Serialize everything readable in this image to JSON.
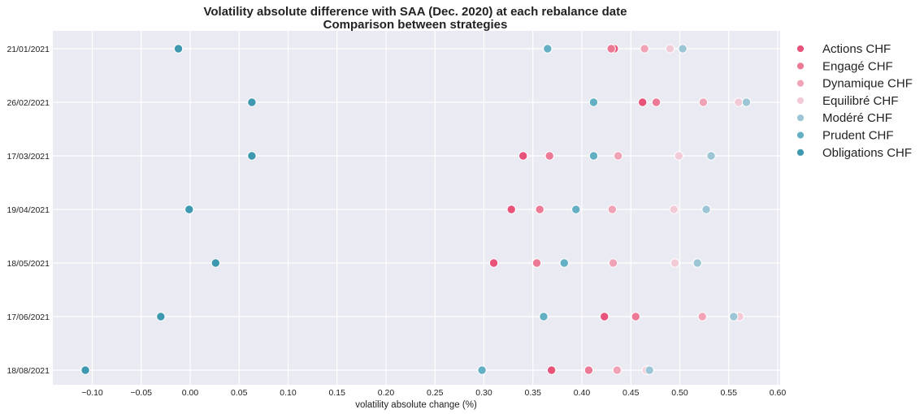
{
  "chart_data": {
    "type": "scatter",
    "title": "Volatility absolute difference with SAA (Dec. 2020) at each rebalance date",
    "subtitle": "Comparison between strategies",
    "xlabel": "volatility absolute change (%)",
    "ylabel": "",
    "xlim": [
      -0.14,
      0.6
    ],
    "xticks": [
      -0.1,
      -0.05,
      0.0,
      0.05,
      0.1,
      0.15,
      0.2,
      0.25,
      0.3,
      0.35,
      0.4,
      0.45,
      0.5,
      0.55,
      0.6
    ],
    "xtick_labels": [
      "−0.10",
      "−0.05",
      "0.00",
      "0.05",
      "0.10",
      "0.15",
      "0.20",
      "0.25",
      "0.30",
      "0.35",
      "0.40",
      "0.45",
      "0.50",
      "0.55",
      "0.60"
    ],
    "categories": [
      "21/01/2021",
      "26/02/2021",
      "17/03/2021",
      "19/04/2021",
      "18/05/2021",
      "17/06/2021",
      "18/08/2021"
    ],
    "grid": true,
    "legend_position": "outside-right",
    "background": "#eaeaf2",
    "series": [
      {
        "name": "Actions CHF",
        "color": "#e8537a",
        "values": [
          0.433,
          0.462,
          0.34,
          0.328,
          0.31,
          0.423,
          0.369
        ]
      },
      {
        "name": "Engagé CHF",
        "color": "#ec7a95",
        "values": [
          0.43,
          0.476,
          0.367,
          0.357,
          0.354,
          0.455,
          0.407
        ]
      },
      {
        "name": "Dynamique CHF",
        "color": "#f0a3b6",
        "values": [
          0.464,
          0.524,
          0.437,
          0.431,
          0.432,
          0.523,
          0.436
        ]
      },
      {
        "name": "Equilibré CHF",
        "color": "#f2cbd6",
        "values": [
          0.49,
          0.56,
          0.499,
          0.494,
          0.495,
          0.561,
          0.466
        ]
      },
      {
        "name": "Modéré CHF",
        "color": "#9cc6d6",
        "values": [
          0.503,
          0.568,
          0.532,
          0.527,
          0.518,
          0.555,
          0.469
        ]
      },
      {
        "name": "Prudent CHF",
        "color": "#63afc3",
        "values": [
          0.365,
          0.412,
          0.412,
          0.394,
          0.382,
          0.361,
          0.298
        ]
      },
      {
        "name": "Obligations CHF",
        "color": "#3d98b0",
        "values": [
          -0.012,
          0.063,
          0.063,
          -0.001,
          0.026,
          -0.03,
          -0.107
        ]
      }
    ]
  }
}
